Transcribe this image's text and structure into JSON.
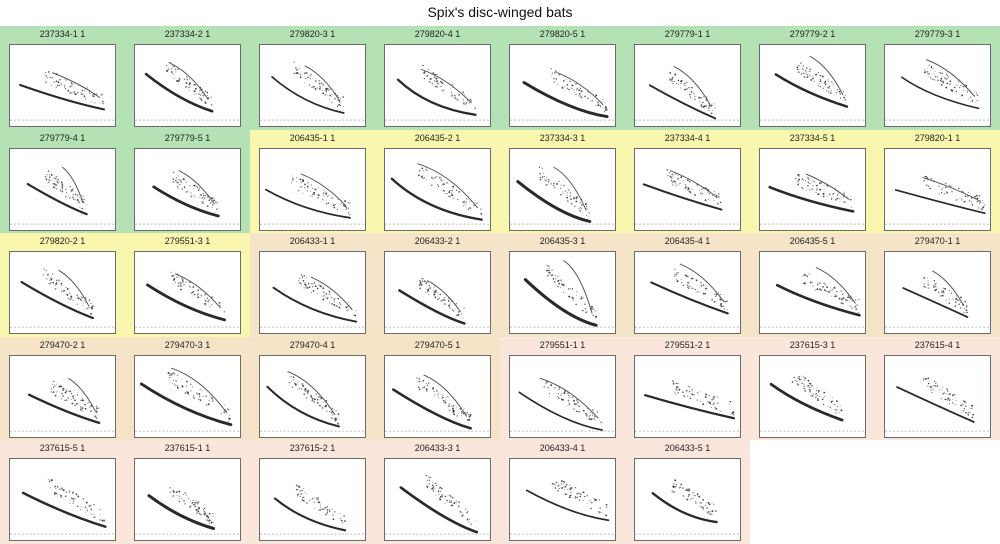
{
  "title": "Spix's disc-winged bats",
  "colors": {
    "green": "#b4e2b4",
    "yellow": "#f9f7ae",
    "orange": "#f5e4c8",
    "pink": "#fbe6dc"
  },
  "panels": [
    {
      "label": "237334-1 1",
      "group": "green"
    },
    {
      "label": "237334-2 1",
      "group": "green"
    },
    {
      "label": "279820-3 1",
      "group": "green"
    },
    {
      "label": "279820-4 1",
      "group": "green"
    },
    {
      "label": "279820-5 1",
      "group": "green"
    },
    {
      "label": "279779-1 1",
      "group": "green"
    },
    {
      "label": "279779-2 1",
      "group": "green"
    },
    {
      "label": "279779-3 1",
      "group": "green"
    },
    {
      "label": "279779-4 1",
      "group": "green"
    },
    {
      "label": "279779-5 1",
      "group": "green"
    },
    {
      "label": "206435-1 1",
      "group": "yellow"
    },
    {
      "label": "206435-2 1",
      "group": "yellow"
    },
    {
      "label": "237334-3 1",
      "group": "yellow"
    },
    {
      "label": "237334-4 1",
      "group": "yellow"
    },
    {
      "label": "237334-5 1",
      "group": "yellow"
    },
    {
      "label": "279820-1 1",
      "group": "yellow"
    },
    {
      "label": "279820-2 1",
      "group": "yellow"
    },
    {
      "label": "279551-3 1",
      "group": "yellow"
    },
    {
      "label": "206433-1 1",
      "group": "orange"
    },
    {
      "label": "206433-2 1",
      "group": "orange"
    },
    {
      "label": "206435-3 1",
      "group": "orange"
    },
    {
      "label": "206435-4 1",
      "group": "orange"
    },
    {
      "label": "206435-5 1",
      "group": "orange"
    },
    {
      "label": "279470-1 1",
      "group": "orange"
    },
    {
      "label": "279470-2 1",
      "group": "orange"
    },
    {
      "label": "279470-3 1",
      "group": "orange"
    },
    {
      "label": "279470-4 1",
      "group": "orange"
    },
    {
      "label": "279470-5 1",
      "group": "orange"
    },
    {
      "label": "279551-1 1",
      "group": "pink"
    },
    {
      "label": "279551-2 1",
      "group": "pink"
    },
    {
      "label": "237615-3 1",
      "group": "pink"
    },
    {
      "label": "237615-4 1",
      "group": "pink"
    },
    {
      "label": "237615-5 1",
      "group": "pink"
    },
    {
      "label": "237615-1 1",
      "group": "pink"
    },
    {
      "label": "237615-2 1",
      "group": "pink"
    },
    {
      "label": "206433-3 1",
      "group": "pink"
    },
    {
      "label": "206433-4 1",
      "group": "pink"
    },
    {
      "label": "206433-5 1",
      "group": "pink"
    }
  ]
}
